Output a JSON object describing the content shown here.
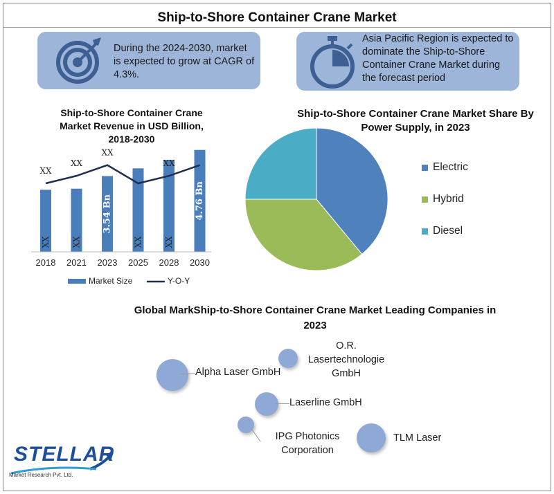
{
  "title": "Ship-to-Shore Container Crane Market",
  "callouts": [
    {
      "icon": "target-icon",
      "text": "During the 2024-2030, market is expected to grow at CAGR of 4.3%."
    },
    {
      "icon": "stopwatch-icon",
      "text": "Asia Pacific Region is expected to dominate the Ship-to-Shore Container Crane Market during the forecast period"
    }
  ],
  "chart_data": [
    {
      "type": "bar",
      "title": "Ship-to-Shore Container Crane Market Revenue in USD Billion, 2018-2030",
      "categories": [
        "2018",
        "2021",
        "2023",
        "2025",
        "2028",
        "2030"
      ],
      "series": [
        {
          "name": "Market Size",
          "type": "bar",
          "values": [
            2.9,
            2.95,
            3.54,
            3.9,
            4.3,
            4.76
          ],
          "labels": [
            "XX",
            "XX",
            "3.54 Bn",
            "XX",
            "XX",
            "4.76 Bn"
          ],
          "color": "#4a7ebb"
        },
        {
          "name": "Y-O-Y",
          "type": "line",
          "values": [
            3.2,
            3.55,
            4.05,
            3.2,
            3.55,
            4.05
          ],
          "labels": [
            "XX",
            "XX",
            "XX",
            "",
            "XX",
            ""
          ],
          "color": "#1f2f4d"
        }
      ],
      "ylim": [
        0,
        5.3
      ],
      "grid": false,
      "legend": "bottom"
    },
    {
      "type": "pie",
      "title": "Ship-to-Shore Container Crane Market Share By Power Supply, in 2023",
      "categories": [
        "Electric",
        "Hybrid",
        "Diesel"
      ],
      "values": [
        39,
        36,
        25
      ],
      "colors": [
        "#4f81bd",
        "#9bbb59",
        "#4bacc6"
      ],
      "legend": "right"
    }
  ],
  "companies": {
    "title": "Global MarkShip-to-Shore Container Crane Market Leading Companies in 2023",
    "items": [
      "Alpha Laser GmbH",
      "O.R. Lasertechnologie GmbH",
      "Laserline GmbH",
      "IPG Photonics Corporation",
      "TLM Laser"
    ]
  },
  "logo": {
    "name": "STELLAR",
    "sub": "Market Research Pvt. Ltd."
  }
}
